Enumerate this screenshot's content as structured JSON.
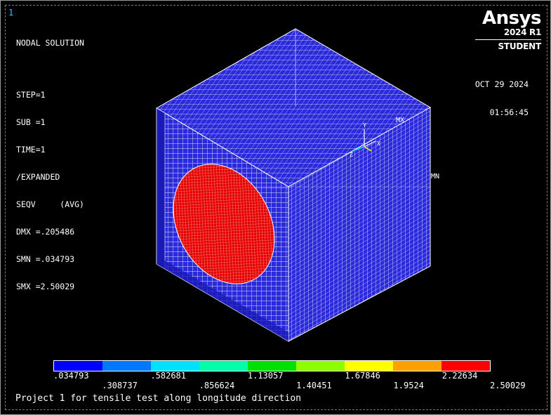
{
  "window_number": "1",
  "solution_info": {
    "title": "NODAL SOLUTION",
    "step": "STEP=1",
    "sub": "SUB =1",
    "time": "TIME=1",
    "expanded": "/EXPANDED",
    "result": "SEQV     (AVG)",
    "dmx": "DMX =.205486",
    "smn": "SMN =.034793",
    "smx": "SMX =2.50029"
  },
  "logo": {
    "word": "Ansys",
    "release": "2024 R1",
    "edition": "STUDENT"
  },
  "datetime": {
    "date": "OCT 29 2024",
    "time": "01:56:45"
  },
  "markers": {
    "max": "MX",
    "min": "MN"
  },
  "axis_triad": {
    "x": "X",
    "y": "Y",
    "z": "Z"
  },
  "legend": {
    "colors": [
      "#0000ff",
      "#0078ff",
      "#00e0ff",
      "#00ffa8",
      "#00e000",
      "#8cff00",
      "#ffff00",
      "#ffa000",
      "#ff0000"
    ],
    "labels_top": [
      ".034793",
      ".582681",
      "1.13057",
      "1.67846",
      "2.22634"
    ],
    "labels_bottom": [
      ".308737",
      ".856624",
      "1.40451",
      "1.9524",
      "2.50029"
    ]
  },
  "colors": {
    "background": "#000000",
    "model_fill": "#2a2adc",
    "mesh_lines": "#ffffff",
    "hot_region": "#e60000"
  },
  "caption": "Project 1 for tensile test along longitude direction"
}
